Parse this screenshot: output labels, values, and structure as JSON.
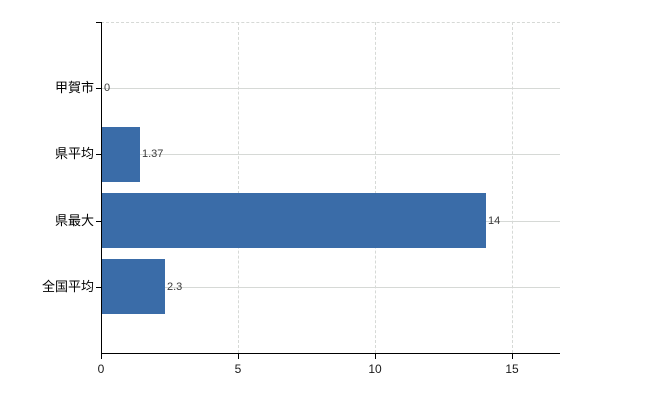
{
  "chart_data": {
    "type": "bar",
    "orientation": "horizontal",
    "title": "",
    "xlabel": "",
    "ylabel": "",
    "categories": [
      "甲賀市",
      "県平均",
      "県最大",
      "全国平均"
    ],
    "values": [
      0,
      1.37,
      14,
      2.3
    ],
    "value_labels": [
      "0",
      "1.37",
      "14",
      "2.3"
    ],
    "x_ticks": [
      0,
      5,
      10,
      15
    ],
    "x_tick_labels": [
      "0",
      "5",
      "10",
      "15"
    ],
    "xlim": [
      0,
      16.75
    ],
    "grid": true,
    "legend": false,
    "colors": {
      "bar": "#3a6ca8",
      "grid": "#d6d9d6",
      "axis": "#000000",
      "category_label": "#000000",
      "value_label": "#3a3a3a",
      "tick_label": "#1a1a1a",
      "background": "#ffffff"
    }
  }
}
